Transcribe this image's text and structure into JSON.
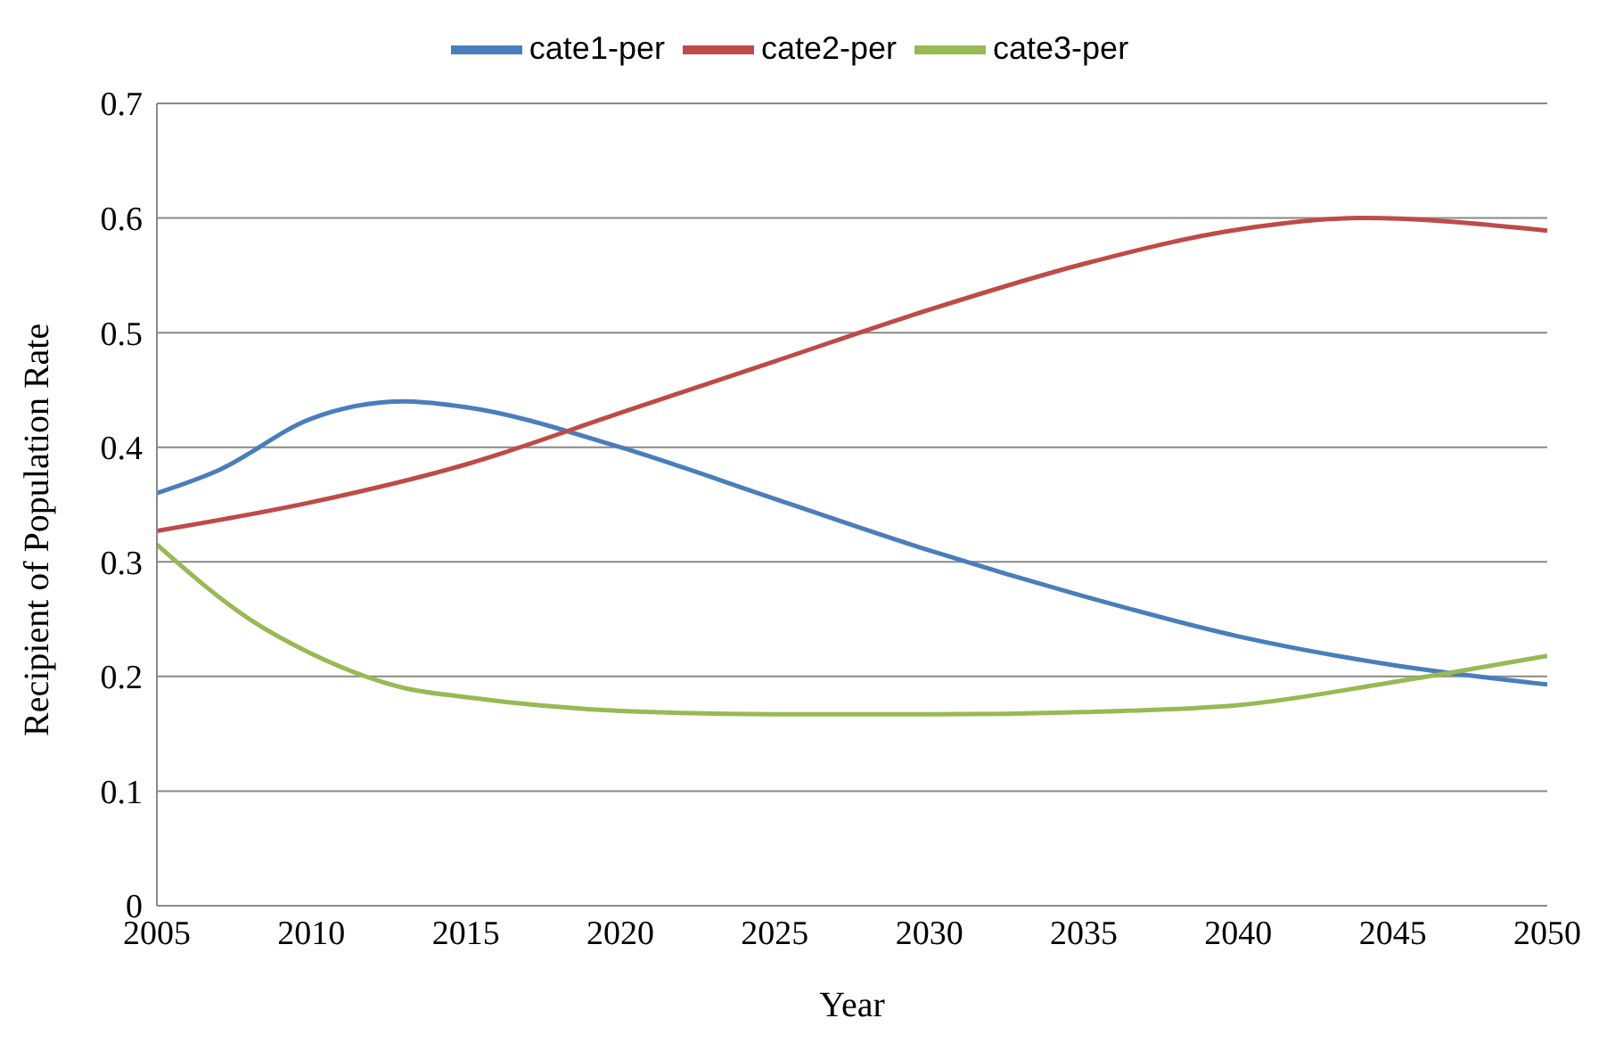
{
  "chart_data": {
    "type": "line",
    "xlabel": "Year",
    "ylabel": "Recipient of Population Rate",
    "series": [
      {
        "name": "cate1-per",
        "color": "#4a7ebb",
        "x": [
          2005,
          2007,
          2010,
          2013,
          2015,
          2020,
          2025,
          2030,
          2035,
          2040,
          2045,
          2050
        ],
        "values": [
          0.36,
          0.38,
          0.425,
          0.44,
          0.435,
          0.4,
          0.355,
          0.31,
          0.27,
          0.235,
          0.21,
          0.193
        ]
      },
      {
        "name": "cate2-per",
        "color": "#be4b48",
        "x": [
          2005,
          2010,
          2015,
          2020,
          2025,
          2030,
          2035,
          2040,
          2044,
          2050
        ],
        "values": [
          0.327,
          0.352,
          0.385,
          0.43,
          0.475,
          0.52,
          0.56,
          0.59,
          0.6,
          0.589
        ]
      },
      {
        "name": "cate3-per",
        "color": "#98b954",
        "x": [
          2005,
          2008,
          2010,
          2013,
          2015,
          2020,
          2025,
          2030,
          2035,
          2040,
          2045,
          2050
        ],
        "values": [
          0.315,
          0.25,
          0.22,
          0.19,
          0.182,
          0.17,
          0.167,
          0.167,
          0.169,
          0.175,
          0.195,
          0.218
        ]
      }
    ],
    "xlim": [
      2005,
      2050
    ],
    "xticks": [
      2005,
      2010,
      2015,
      2020,
      2025,
      2030,
      2035,
      2040,
      2045,
      2050
    ],
    "ylim": [
      0,
      0.7
    ],
    "yticks": [
      0,
      0.1,
      0.2,
      0.3,
      0.4,
      0.5,
      0.6,
      0.7
    ],
    "grid": "y",
    "legend": "top",
    "marker": "none",
    "line_style": "solid"
  }
}
